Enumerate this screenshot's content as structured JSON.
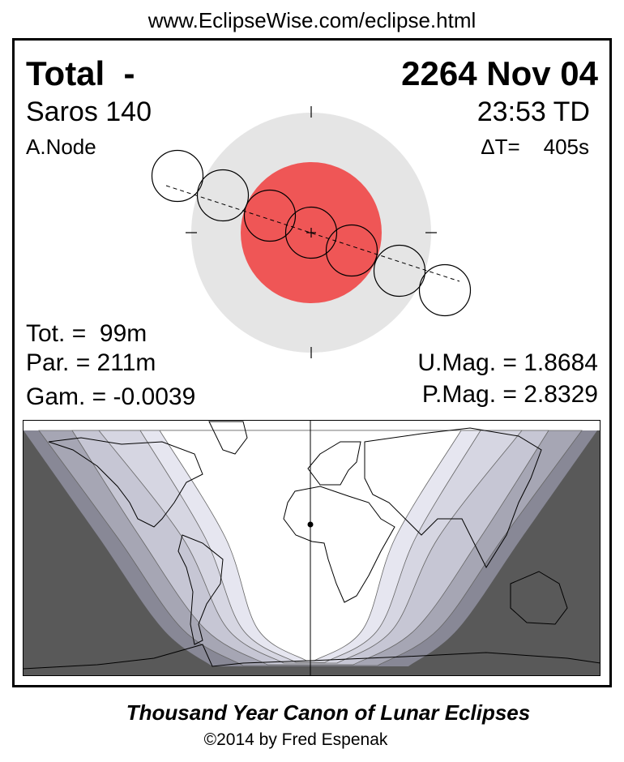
{
  "header": {
    "url": "www.EclipseWise.com/eclipse.html"
  },
  "eclipse": {
    "type": "Total  -",
    "date": "2264 Nov 04",
    "saros": "Saros 140",
    "time": "23:53 TD",
    "node": "A.Node",
    "delta_t": "ΔT=    405s",
    "tot": "Tot. =  99m",
    "par": "Par. = 211m",
    "gam": "Gam. = -0.0039",
    "umag": "U.Mag. = 1.8684",
    "pmag": "P.Mag. = 2.8329"
  },
  "colors": {
    "umbra": "#ef5656",
    "penumbra": "#e5e5e5",
    "night": "#595959",
    "bands": [
      "#888896",
      "#a6a6b4",
      "#c6c6d4",
      "#d6d6e2",
      "#e6e6f0",
      "#ffffff"
    ]
  },
  "footer": {
    "title": "Thousand Year Canon of Lunar Eclipses",
    "copyright": "©2014 by Fred Espenak"
  }
}
